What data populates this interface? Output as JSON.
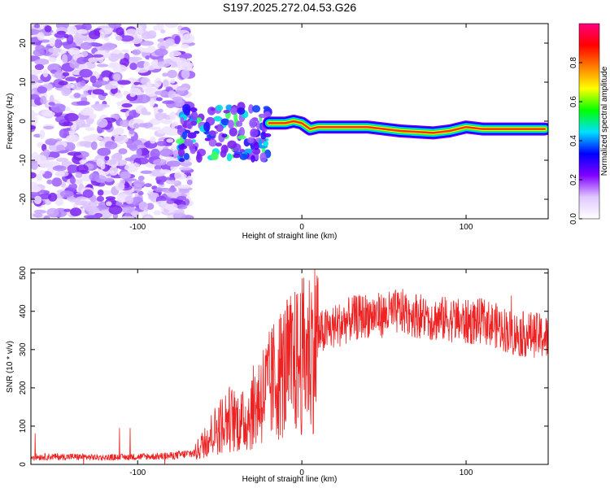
{
  "chart_data": [
    {
      "type": "heatmap",
      "title": "S197.2025.272.04.53.G26",
      "xlabel": "Height of straight line (km)",
      "ylabel": "Frequency (Hz)",
      "xlim": [
        -165,
        150
      ],
      "ylim": [
        -25,
        25
      ],
      "xticks": [
        -100,
        0,
        100
      ],
      "xtick_labels": [
        "-100",
        "0",
        "100"
      ],
      "yticks": [
        -20,
        -10,
        0,
        10,
        20
      ],
      "ytick_labels": [
        "-20",
        "-10",
        "0",
        "10",
        "20"
      ],
      "colorbar": {
        "label": "Normalized spectral amplitude",
        "range": [
          0,
          1
        ],
        "ticks": [
          0.0,
          0.2,
          0.4,
          0.6,
          0.8
        ],
        "tick_labels": [
          "0.0",
          "0.2",
          "0.4",
          "0.6",
          "0.8"
        ],
        "colors": [
          "#ffffff",
          "#e0c8ff",
          "#8000ff",
          "#0000ff",
          "#00e0ff",
          "#00ff00",
          "#ffff00",
          "#ff8000",
          "#ff0000",
          "#ff0080"
        ]
      },
      "signal_ridge": {
        "x_km": [
          -20,
          -10,
          -5,
          0,
          5,
          10,
          20,
          40,
          60,
          80,
          90,
          100,
          110,
          130,
          148
        ],
        "freq_hz": [
          -0.5,
          -0.5,
          0,
          -0.5,
          -2,
          -1.5,
          -1.5,
          -1.5,
          -2.5,
          -3,
          -2.5,
          -1.5,
          -2,
          -2,
          -2
        ]
      }
    },
    {
      "type": "line",
      "title": "",
      "xlabel": "Height of straight line (km)",
      "ylabel": "SNR (10 * v/v)",
      "xlim": [
        -165,
        150
      ],
      "ylim": [
        0,
        510
      ],
      "xticks": [
        -100,
        0,
        100
      ],
      "xtick_labels": [
        "-100",
        "0",
        "100"
      ],
      "yticks": [
        0,
        100,
        200,
        300,
        400,
        500
      ],
      "ytick_labels": [
        "0",
        "100",
        "200",
        "300",
        "400",
        "500"
      ],
      "series": [
        {
          "name": "SNR",
          "color": "#ee2222",
          "x": [
            -165,
            -140,
            -120,
            -100,
            -80,
            -65,
            -55,
            -45,
            -35,
            -25,
            -20,
            -15,
            -10,
            -5,
            0,
            5,
            10,
            20,
            30,
            40,
            50,
            60,
            70,
            80,
            90,
            100,
            110,
            120,
            130,
            140,
            150
          ],
          "y": [
            20,
            20,
            18,
            20,
            22,
            30,
            80,
            120,
            110,
            180,
            200,
            230,
            250,
            260,
            280,
            300,
            340,
            360,
            380,
            390,
            390,
            400,
            390,
            380,
            380,
            370,
            375,
            360,
            340,
            340,
            330
          ]
        }
      ]
    }
  ]
}
